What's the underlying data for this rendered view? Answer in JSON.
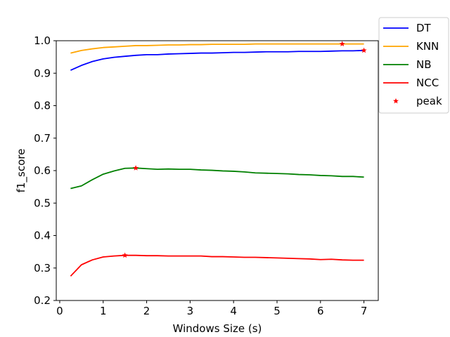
{
  "chart_data": {
    "type": "line",
    "title": "",
    "xlabel": "Windows Size (s)",
    "ylabel": "f1_score",
    "xlim": [
      -0.08,
      7.33
    ],
    "ylim": [
      0.2,
      1.0
    ],
    "xticks": [
      0,
      1,
      2,
      3,
      4,
      5,
      6,
      7
    ],
    "xtick_labels": [
      "0",
      "1",
      "2",
      "3",
      "4",
      "5",
      "6",
      "7"
    ],
    "yticks": [
      0.2,
      0.3,
      0.4,
      0.5,
      0.6,
      0.7,
      0.8,
      0.9,
      1.0
    ],
    "ytick_labels": [
      "0.2",
      "0.3",
      "0.4",
      "0.5",
      "0.6",
      "0.7",
      "0.8",
      "0.9",
      "1.0"
    ],
    "grid": false,
    "legend_position": "outside-top-right",
    "x": [
      0.25,
      0.5,
      0.75,
      1.0,
      1.25,
      1.5,
      1.75,
      2.0,
      2.25,
      2.5,
      2.75,
      3.0,
      3.25,
      3.5,
      3.75,
      4.0,
      4.25,
      4.5,
      4.75,
      5.0,
      5.25,
      5.5,
      5.75,
      6.0,
      6.25,
      6.5,
      6.75,
      7.0
    ],
    "series": [
      {
        "name": "DT",
        "color": "#0000ff",
        "values": [
          0.909,
          0.924,
          0.936,
          0.944,
          0.949,
          0.952,
          0.955,
          0.957,
          0.957,
          0.959,
          0.96,
          0.961,
          0.962,
          0.962,
          0.963,
          0.964,
          0.964,
          0.965,
          0.966,
          0.966,
          0.966,
          0.967,
          0.967,
          0.967,
          0.968,
          0.969,
          0.969,
          0.97
        ]
      },
      {
        "name": "KNN",
        "color": "#ffa500",
        "values": [
          0.962,
          0.97,
          0.975,
          0.979,
          0.981,
          0.983,
          0.985,
          0.985,
          0.986,
          0.987,
          0.987,
          0.988,
          0.988,
          0.989,
          0.989,
          0.989,
          0.989,
          0.99,
          0.99,
          0.99,
          0.99,
          0.99,
          0.99,
          0.99,
          0.99,
          0.99,
          0.99,
          0.99
        ]
      },
      {
        "name": "NB",
        "color": "#008000",
        "values": [
          0.545,
          0.553,
          0.572,
          0.589,
          0.599,
          0.607,
          0.608,
          0.606,
          0.604,
          0.605,
          0.604,
          0.604,
          0.602,
          0.601,
          0.599,
          0.598,
          0.596,
          0.593,
          0.592,
          0.591,
          0.59,
          0.588,
          0.587,
          0.585,
          0.584,
          0.582,
          0.582,
          0.58
        ]
      },
      {
        "name": "NCC",
        "color": "#ff0000",
        "values": [
          0.275,
          0.31,
          0.325,
          0.334,
          0.337,
          0.339,
          0.339,
          0.338,
          0.338,
          0.337,
          0.337,
          0.337,
          0.337,
          0.335,
          0.335,
          0.334,
          0.333,
          0.333,
          0.332,
          0.331,
          0.33,
          0.329,
          0.328,
          0.326,
          0.327,
          0.325,
          0.324,
          0.324
        ]
      }
    ],
    "peaks": {
      "name": "peak",
      "color": "#ff0000",
      "points": [
        {
          "series": "DT",
          "x": 7.0,
          "y": 0.97
        },
        {
          "series": "KNN",
          "x": 6.5,
          "y": 0.99
        },
        {
          "series": "NB",
          "x": 1.75,
          "y": 0.608
        },
        {
          "series": "NCC",
          "x": 1.5,
          "y": 0.339
        }
      ]
    }
  }
}
